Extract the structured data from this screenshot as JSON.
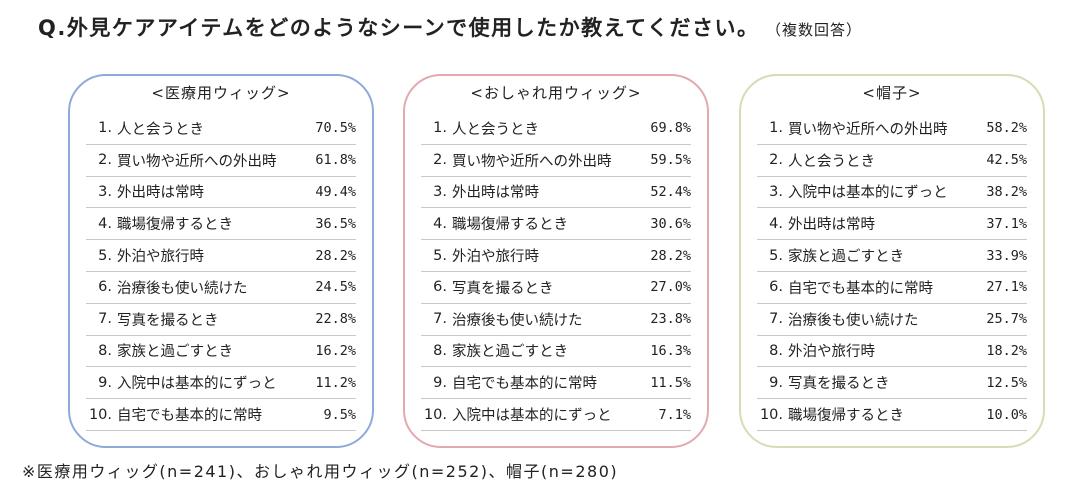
{
  "title": "Q.外見ケアアイテムをどのようなシーンで使用したか教えてください。",
  "title_note": "（複数回答）",
  "footnote": "※医療用ウィッグ(n=241)、おしゃれ用ウィッグ(n=252)、帽子(n=280)",
  "colors": {
    "panel1": "#8eaadb",
    "panel2": "#e3a9ae",
    "panel3": "#d6dcb3"
  },
  "panels": [
    {
      "heading": "<医療用ウィッグ>",
      "items": [
        {
          "rank": "1.",
          "label": "人と会うとき",
          "value": "70.5%"
        },
        {
          "rank": "2.",
          "label": "買い物や近所への外出時",
          "value": "61.8%"
        },
        {
          "rank": "3.",
          "label": "外出時は常時",
          "value": "49.4%"
        },
        {
          "rank": "4.",
          "label": "職場復帰するとき",
          "value": "36.5%"
        },
        {
          "rank": "5.",
          "label": "外泊や旅行時",
          "value": "28.2%"
        },
        {
          "rank": "6.",
          "label": "治療後も使い続けた",
          "value": "24.5%"
        },
        {
          "rank": "7.",
          "label": "写真を撮るとき",
          "value": "22.8%"
        },
        {
          "rank": "8.",
          "label": "家族と過ごすとき",
          "value": "16.2%"
        },
        {
          "rank": "9.",
          "label": "入院中は基本的にずっと",
          "value": "11.2%"
        },
        {
          "rank": "10.",
          "label": "自宅でも基本的に常時",
          "value": "9.5%"
        }
      ]
    },
    {
      "heading": "<おしゃれ用ウィッグ>",
      "items": [
        {
          "rank": "1.",
          "label": "人と会うとき",
          "value": "69.8%"
        },
        {
          "rank": "2.",
          "label": "買い物や近所への外出時",
          "value": "59.5%"
        },
        {
          "rank": "3.",
          "label": "外出時は常時",
          "value": "52.4%"
        },
        {
          "rank": "4.",
          "label": "職場復帰するとき",
          "value": "30.6%"
        },
        {
          "rank": "5.",
          "label": "外泊や旅行時",
          "value": "28.2%"
        },
        {
          "rank": "6.",
          "label": "写真を撮るとき",
          "value": "27.0%"
        },
        {
          "rank": "7.",
          "label": "治療後も使い続けた",
          "value": "23.8%"
        },
        {
          "rank": "8.",
          "label": "家族と過ごすとき",
          "value": "16.3%"
        },
        {
          "rank": "9.",
          "label": "自宅でも基本的に常時",
          "value": "11.5%"
        },
        {
          "rank": "10.",
          "label": "入院中は基本的にずっと",
          "value": "7.1%"
        }
      ]
    },
    {
      "heading": "<帽子>",
      "items": [
        {
          "rank": "1.",
          "label": "買い物や近所への外出時",
          "value": "58.2%"
        },
        {
          "rank": "2.",
          "label": "人と会うとき",
          "value": "42.5%"
        },
        {
          "rank": "3.",
          "label": "入院中は基本的にずっと",
          "value": "38.2%"
        },
        {
          "rank": "4.",
          "label": "外出時は常時",
          "value": "37.1%"
        },
        {
          "rank": "5.",
          "label": "家族と過ごすとき",
          "value": "33.9%"
        },
        {
          "rank": "6.",
          "label": "自宅でも基本的に常時",
          "value": "27.1%"
        },
        {
          "rank": "7.",
          "label": "治療後も使い続けた",
          "value": "25.7%"
        },
        {
          "rank": "8.",
          "label": "外泊や旅行時",
          "value": "18.2%"
        },
        {
          "rank": "9.",
          "label": "写真を撮るとき",
          "value": "12.5%"
        },
        {
          "rank": "10.",
          "label": "職場復帰するとき",
          "value": "10.0%"
        }
      ]
    }
  ]
}
